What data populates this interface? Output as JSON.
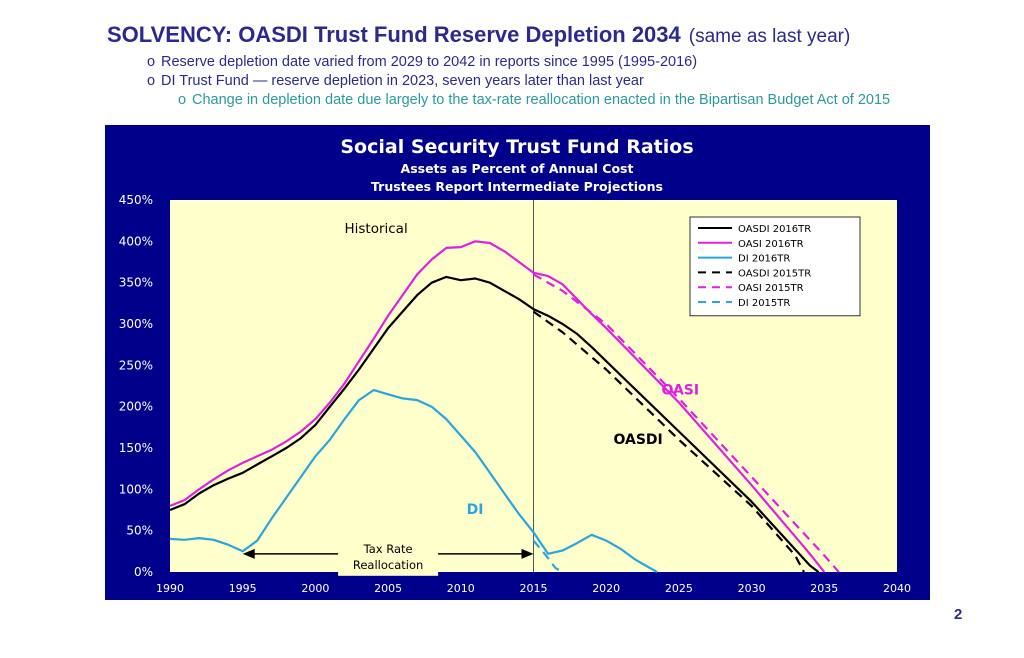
{
  "slide": {
    "title": "SOLVENCY:  OASDI Trust Fund Reserve Depletion 2034",
    "title_note": "(same as last year)",
    "bullets": [
      {
        "marker": "o",
        "text": "Reserve depletion date varied from 2029 to 2042 in reports since 1995 (1995-2016)"
      },
      {
        "marker": "o",
        "text": "DI Trust Fund — reserve depletion in 2023, seven years later than last year"
      },
      {
        "marker": "o",
        "text": "Change in depletion date due largely to the tax-rate reallocation enacted in the Bipartisan Budget Act of 2015"
      }
    ],
    "page_number": "2"
  },
  "chart_data": {
    "type": "line",
    "title": "Social Security Trust Fund Ratios",
    "subtitle1": "Assets as Percent of Annual Cost",
    "subtitle2": "Trustees Report Intermediate Projections",
    "xlim": [
      1990,
      2040
    ],
    "ylim": [
      0,
      450
    ],
    "x_ticks": [
      "1990",
      "1995",
      "2000",
      "2005",
      "2010",
      "2015",
      "2020",
      "2025",
      "2030",
      "2035",
      "2040"
    ],
    "y_ticks": [
      "0%",
      "50%",
      "100%",
      "150%",
      "200%",
      "250%",
      "300%",
      "350%",
      "400%",
      "450%"
    ],
    "grid": false,
    "divider_year": 2015,
    "legend_position": "top-right",
    "annotations": {
      "historical": "Historical",
      "oasi": "OASI",
      "oasdi": "OASDI",
      "di": "DI",
      "tax_rate_line1": "Tax Rate",
      "tax_rate_line2": "Reallocation",
      "tax_rate_span": [
        1995,
        2015
      ]
    },
    "series": [
      {
        "name": "OASDI 2016TR",
        "color": "#000000",
        "dash": "solid",
        "points": [
          [
            1990,
            75
          ],
          [
            1991,
            82
          ],
          [
            1992,
            95
          ],
          [
            1993,
            105
          ],
          [
            1994,
            113
          ],
          [
            1995,
            120
          ],
          [
            1996,
            130
          ],
          [
            1997,
            140
          ],
          [
            1998,
            150
          ],
          [
            1999,
            162
          ],
          [
            2000,
            178
          ],
          [
            2001,
            200
          ],
          [
            2002,
            222
          ],
          [
            2003,
            245
          ],
          [
            2004,
            270
          ],
          [
            2005,
            295
          ],
          [
            2006,
            315
          ],
          [
            2007,
            335
          ],
          [
            2008,
            350
          ],
          [
            2009,
            357
          ],
          [
            2010,
            353
          ],
          [
            2011,
            355
          ],
          [
            2012,
            350
          ],
          [
            2013,
            340
          ],
          [
            2014,
            330
          ],
          [
            2015,
            318
          ],
          [
            2016,
            310
          ],
          [
            2017,
            300
          ],
          [
            2018,
            288
          ],
          [
            2019,
            272
          ],
          [
            2020,
            255
          ],
          [
            2025,
            170
          ],
          [
            2030,
            85
          ],
          [
            2034,
            8
          ],
          [
            2034.6,
            0
          ]
        ]
      },
      {
        "name": "OASI 2016TR",
        "color": "#e020e0",
        "dash": "solid",
        "points": [
          [
            1990,
            80
          ],
          [
            1991,
            87
          ],
          [
            1992,
            100
          ],
          [
            1993,
            112
          ],
          [
            1994,
            123
          ],
          [
            1995,
            132
          ],
          [
            1996,
            140
          ],
          [
            1997,
            148
          ],
          [
            1998,
            158
          ],
          [
            1999,
            170
          ],
          [
            2000,
            185
          ],
          [
            2001,
            205
          ],
          [
            2002,
            228
          ],
          [
            2003,
            255
          ],
          [
            2004,
            282
          ],
          [
            2005,
            310
          ],
          [
            2006,
            335
          ],
          [
            2007,
            360
          ],
          [
            2008,
            378
          ],
          [
            2009,
            392
          ],
          [
            2010,
            393
          ],
          [
            2011,
            400
          ],
          [
            2012,
            398
          ],
          [
            2013,
            388
          ],
          [
            2014,
            375
          ],
          [
            2015,
            362
          ],
          [
            2016,
            358
          ],
          [
            2017,
            348
          ],
          [
            2018,
            330
          ],
          [
            2019,
            312
          ],
          [
            2020,
            295
          ],
          [
            2025,
            205
          ],
          [
            2030,
            105
          ],
          [
            2034,
            22
          ],
          [
            2035,
            0
          ]
        ]
      },
      {
        "name": "DI 2016TR",
        "color": "#2aa5dd",
        "dash": "solid",
        "points": [
          [
            1990,
            40
          ],
          [
            1991,
            39
          ],
          [
            1992,
            41
          ],
          [
            1993,
            39
          ],
          [
            1994,
            33
          ],
          [
            1995,
            25
          ],
          [
            1996,
            38
          ],
          [
            1997,
            65
          ],
          [
            1998,
            90
          ],
          [
            1999,
            115
          ],
          [
            2000,
            140
          ],
          [
            2001,
            160
          ],
          [
            2002,
            185
          ],
          [
            2003,
            208
          ],
          [
            2004,
            220
          ],
          [
            2005,
            215
          ],
          [
            2006,
            210
          ],
          [
            2007,
            208
          ],
          [
            2008,
            200
          ],
          [
            2009,
            185
          ],
          [
            2010,
            165
          ],
          [
            2011,
            145
          ],
          [
            2012,
            120
          ],
          [
            2013,
            95
          ],
          [
            2014,
            70
          ],
          [
            2015,
            48
          ],
          [
            2016,
            22
          ],
          [
            2017,
            26
          ],
          [
            2018,
            35
          ],
          [
            2019,
            45
          ],
          [
            2020,
            38
          ],
          [
            2021,
            28
          ],
          [
            2022,
            15
          ],
          [
            2023,
            5
          ],
          [
            2023.5,
            0
          ]
        ]
      },
      {
        "name": "OASDI 2015TR",
        "color": "#000000",
        "dash": "dashed",
        "points": [
          [
            2015,
            315
          ],
          [
            2017,
            290
          ],
          [
            2020,
            245
          ],
          [
            2025,
            160
          ],
          [
            2030,
            80
          ],
          [
            2033,
            20
          ],
          [
            2033.6,
            0
          ]
        ]
      },
      {
        "name": "OASI 2015TR",
        "color": "#e020e0",
        "dash": "dashed",
        "points": [
          [
            2015,
            360
          ],
          [
            2017,
            340
          ],
          [
            2020,
            300
          ],
          [
            2025,
            210
          ],
          [
            2030,
            115
          ],
          [
            2035,
            20
          ],
          [
            2036,
            0
          ]
        ]
      },
      {
        "name": "DI 2015TR",
        "color": "#2aa5dd",
        "dash": "dashed",
        "points": [
          [
            2015,
            38
          ],
          [
            2016,
            17
          ],
          [
            2016.5,
            5
          ],
          [
            2017,
            0
          ]
        ]
      }
    ]
  }
}
